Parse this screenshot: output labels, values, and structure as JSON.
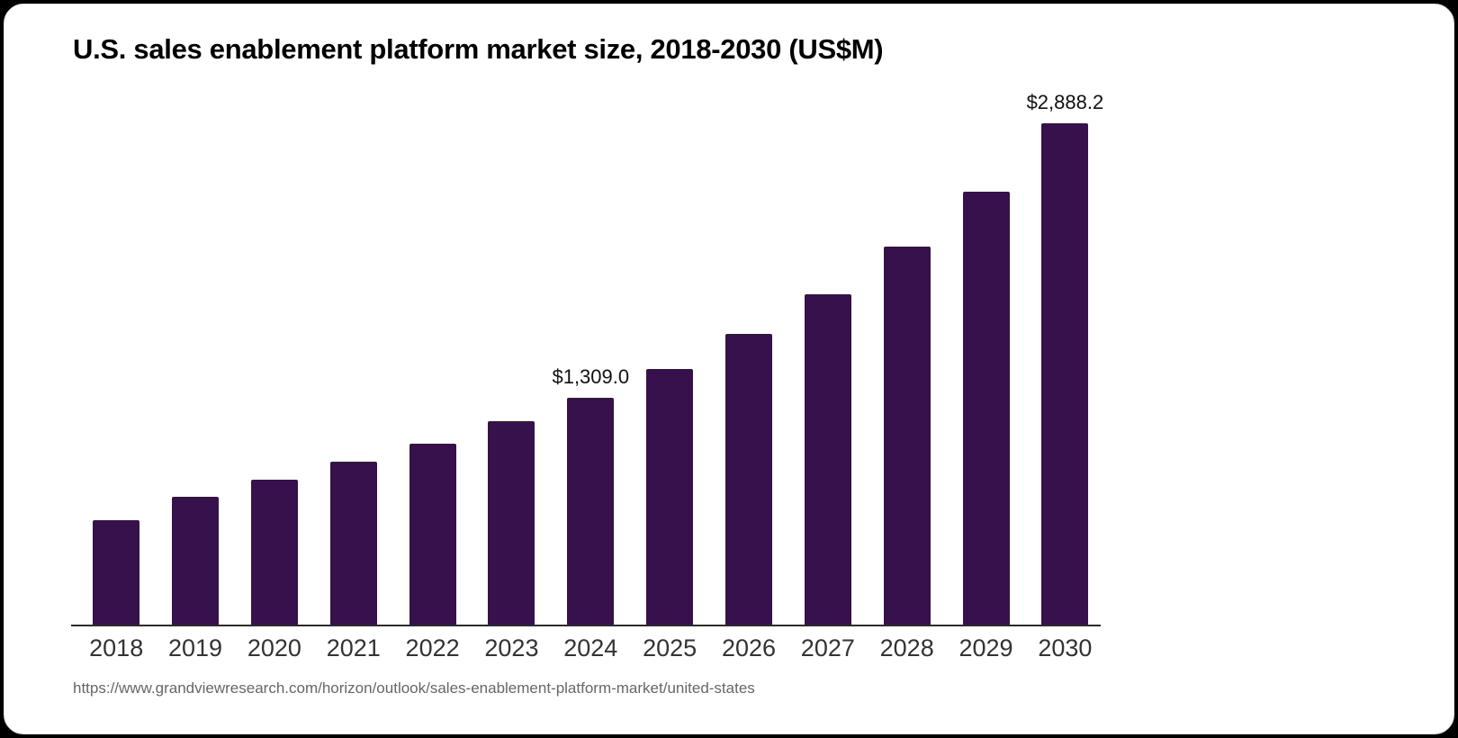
{
  "page": {
    "background_color": "#000000",
    "card_color": "#ffffff"
  },
  "chart_data": {
    "type": "bar",
    "title": "U.S. sales enablement platform market size, 2018-2030 (US$M)",
    "xlabel": "",
    "ylabel": "US$M",
    "categories": [
      "2018",
      "2019",
      "2020",
      "2021",
      "2022",
      "2023",
      "2024",
      "2025",
      "2026",
      "2027",
      "2028",
      "2029",
      "2030"
    ],
    "values": [
      600,
      735,
      835,
      940,
      1045,
      1170,
      1309.0,
      1475,
      1675,
      1905,
      2180,
      2495,
      2888.2
    ],
    "value_labels": {
      "2024": "$1,309.0",
      "2030": "$2,888.2"
    },
    "ylim": [
      0,
      2888.2
    ],
    "grid": false,
    "legend_position": "none",
    "bar_color": "#37114b",
    "axis_line_color": "#2b2b2b",
    "tick_label_color": "#333333",
    "value_label_color": "#111111"
  },
  "source": {
    "url": "https://www.grandviewresearch.com/horizon/outlook/sales-enablement-platform-market/united-states"
  }
}
